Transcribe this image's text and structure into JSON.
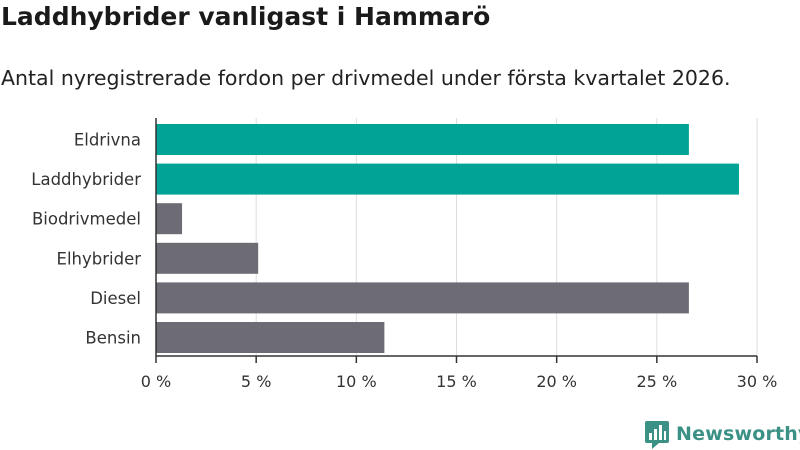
{
  "header": {
    "title": "Laddhybrider vanligast i Hammarö",
    "subtitle": "Antal nyregistrerade fordon per drivmedel under första kvartalet 2026."
  },
  "chart_data": {
    "type": "bar",
    "orientation": "horizontal",
    "categories": [
      "Eldrivna",
      "Laddhybrider",
      "Biodrivmedel",
      "Elhybrider",
      "Diesel",
      "Bensin"
    ],
    "values": [
      26.6,
      29.1,
      1.3,
      5.1,
      26.6,
      11.4
    ],
    "highlight": [
      true,
      true,
      false,
      false,
      false,
      false
    ],
    "xlim": [
      0,
      30
    ],
    "xticks": [
      0,
      5,
      10,
      15,
      20,
      25,
      30
    ],
    "xtick_labels": [
      "0 %",
      "5 %",
      "10 %",
      "15 %",
      "20 %",
      "25 %",
      "30 %"
    ],
    "grid": true,
    "colors": {
      "highlight": "#00a396",
      "default": "#6d6c74",
      "grid": "#dddddd",
      "axis": "#333333"
    }
  },
  "branding": {
    "logo_text": "Newsworthy",
    "logo_icon": "newsworthy-chart-icon",
    "logo_color": "#3b9185"
  }
}
